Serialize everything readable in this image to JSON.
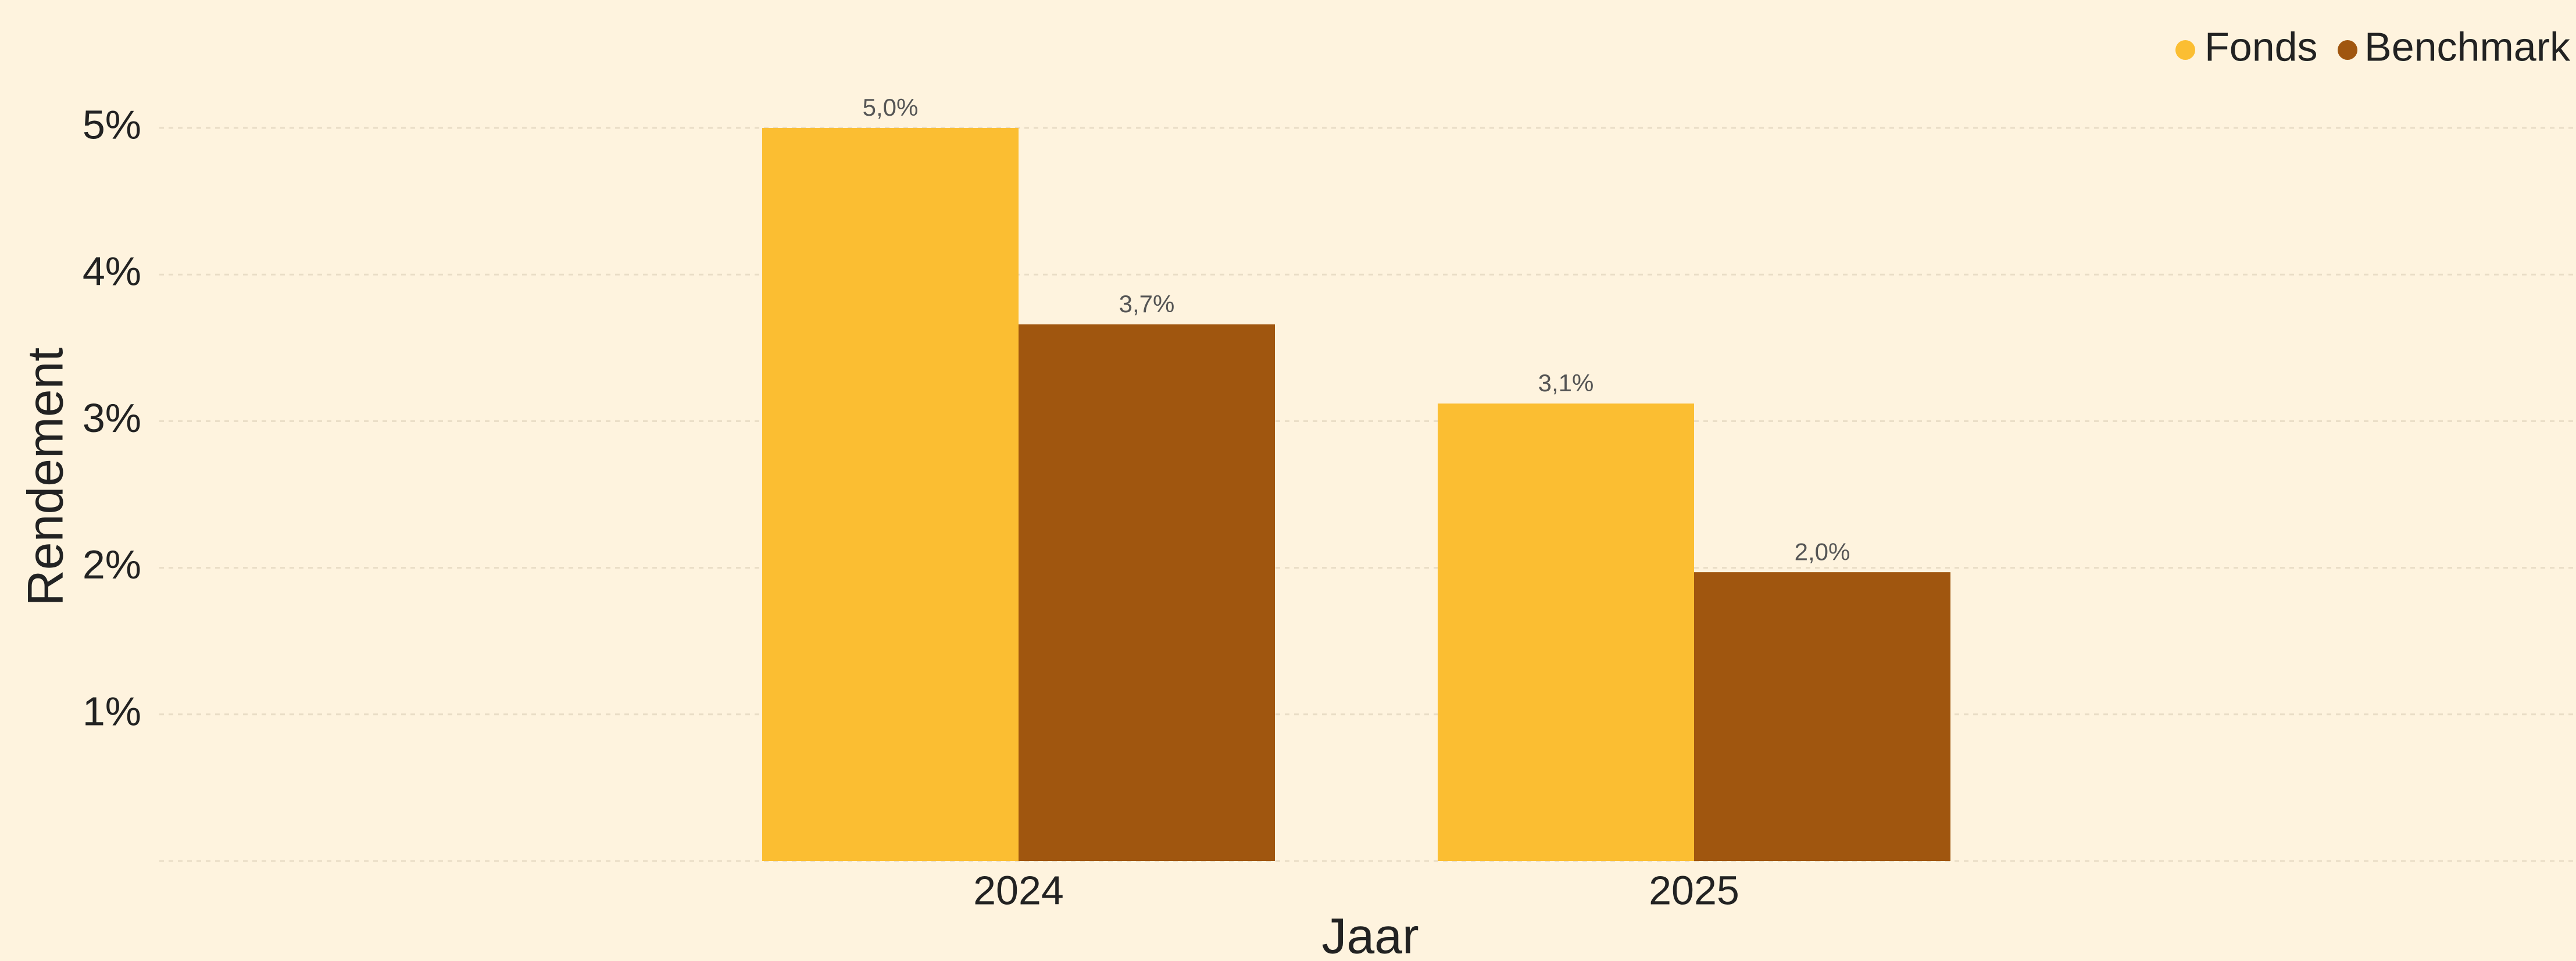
{
  "chart_data": {
    "type": "bar",
    "x_label": "Jaar",
    "y_label": "Rendement",
    "categories": [
      "2024",
      "2025"
    ],
    "series": [
      {
        "name": "Fonds",
        "color": "#FBBE32",
        "values": [
          5.0,
          3.12
        ],
        "value_labels": [
          "5,0%",
          "3,1%"
        ]
      },
      {
        "name": "Benchmark",
        "color": "#A0560F",
        "values": [
          3.66,
          1.97
        ],
        "value_labels": [
          "3,7%",
          "2,0%"
        ]
      }
    ],
    "ylim": [
      0,
      5
    ],
    "yticks": [
      {
        "value": 1,
        "label": "1%"
      },
      {
        "value": 2,
        "label": "2%"
      },
      {
        "value": 3,
        "label": "3%"
      },
      {
        "value": 4,
        "label": "4%"
      },
      {
        "value": 5,
        "label": "5%"
      }
    ],
    "grid": true,
    "legend": "top-right"
  }
}
